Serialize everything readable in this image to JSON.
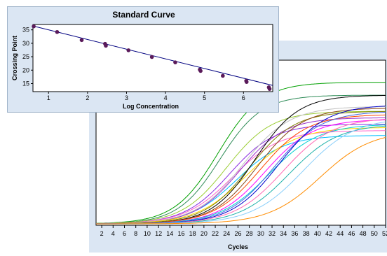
{
  "chart_data": [
    {
      "type": "line",
      "title": "",
      "xlabel": "Cycles",
      "ylabel": "",
      "xlim": [
        1,
        52
      ],
      "xticks": [
        2,
        4,
        6,
        8,
        10,
        12,
        14,
        16,
        18,
        20,
        22,
        24,
        26,
        28,
        30,
        32,
        34,
        36,
        38,
        40,
        42,
        44,
        46,
        48,
        50,
        52
      ],
      "grid": false,
      "curves": [
        {
          "color": "#00a000",
          "ct": 22.5,
          "plateau": 0.88,
          "k": 0.26
        },
        {
          "color": "#2e8b57",
          "ct": 22.8,
          "plateau": 0.8,
          "k": 0.27
        },
        {
          "color": "#9acd32",
          "ct": 24.0,
          "plateau": 0.7,
          "k": 0.25
        },
        {
          "color": "#8a2be2",
          "ct": 24.5,
          "plateau": 0.62,
          "k": 0.25
        },
        {
          "color": "#ff66cc",
          "ct": 25.0,
          "plateau": 0.58,
          "k": 0.24
        },
        {
          "color": "#00bfff",
          "ct": 25.8,
          "plateau": 0.55,
          "k": 0.24
        },
        {
          "color": "#9932cc",
          "ct": 26.3,
          "plateau": 0.66,
          "k": 0.25
        },
        {
          "color": "#c0c0c0",
          "ct": 26.8,
          "plateau": 0.73,
          "k": 0.24
        },
        {
          "color": "#ffd700",
          "ct": 27.5,
          "plateau": 0.6,
          "k": 0.23
        },
        {
          "color": "#808000",
          "ct": 28.0,
          "plateau": 0.7,
          "k": 0.25
        },
        {
          "color": "#000000",
          "ct": 29.0,
          "plateau": 0.8,
          "k": 0.26
        },
        {
          "color": "#8b4513",
          "ct": 29.5,
          "plateau": 0.72,
          "k": 0.25
        },
        {
          "color": "#ff4500",
          "ct": 30.0,
          "plateau": 0.68,
          "k": 0.24
        },
        {
          "color": "#ff00ff",
          "ct": 30.8,
          "plateau": 0.65,
          "k": 0.24
        },
        {
          "color": "#00ced1",
          "ct": 31.5,
          "plateau": 0.62,
          "k": 0.23
        },
        {
          "color": "#4169e1",
          "ct": 32.3,
          "plateau": 0.7,
          "k": 0.24
        },
        {
          "color": "#0000cd",
          "ct": 33.2,
          "plateau": 0.74,
          "k": 0.24
        },
        {
          "color": "#ff69b4",
          "ct": 34.0,
          "plateau": 0.66,
          "k": 0.23
        },
        {
          "color": "#20b2aa",
          "ct": 35.0,
          "plateau": 0.62,
          "k": 0.23
        },
        {
          "color": "#87cefa",
          "ct": 37.5,
          "plateau": 0.66,
          "k": 0.22
        },
        {
          "color": "#ff8c00",
          "ct": 40.5,
          "plateau": 0.58,
          "k": 0.22
        }
      ]
    },
    {
      "type": "scatter",
      "title": "Standard Curve",
      "xlabel": "Log Concentration",
      "ylabel": "Crossing Point",
      "xlim": [
        0.6,
        6.75
      ],
      "ylim": [
        12,
        37
      ],
      "xticks": [
        1,
        2,
        3,
        4,
        5,
        6
      ],
      "yticks": [
        15,
        20,
        25,
        30,
        35
      ],
      "fit_line": {
        "slope": -3.6,
        "intercept": 38.6
      },
      "points": [
        {
          "x": 0.62,
          "y": 36.3
        },
        {
          "x": 1.22,
          "y": 34.2
        },
        {
          "x": 1.85,
          "y": 31.2
        },
        {
          "x": 2.45,
          "y": 29.8
        },
        {
          "x": 2.47,
          "y": 29.1
        },
        {
          "x": 3.05,
          "y": 27.4
        },
        {
          "x": 3.65,
          "y": 24.9
        },
        {
          "x": 4.25,
          "y": 22.9
        },
        {
          "x": 4.88,
          "y": 20.2
        },
        {
          "x": 4.9,
          "y": 19.7
        },
        {
          "x": 5.47,
          "y": 17.9
        },
        {
          "x": 6.07,
          "y": 16.0
        },
        {
          "x": 6.08,
          "y": 15.6
        },
        {
          "x": 6.65,
          "y": 13.6
        },
        {
          "x": 6.67,
          "y": 13.0
        }
      ]
    }
  ]
}
